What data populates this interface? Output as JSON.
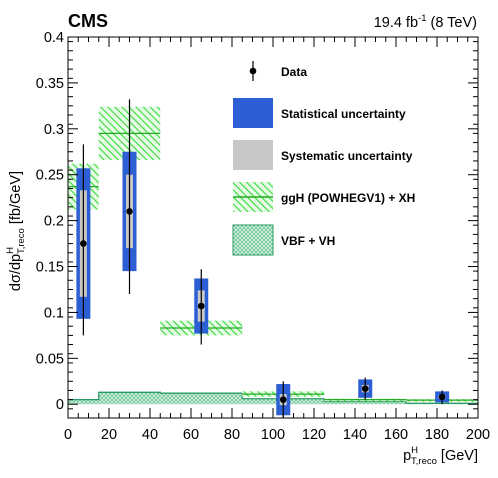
{
  "header": {
    "experiment": "CMS",
    "lumi": "19.4 fb",
    "lumi_exp": "-1",
    "energy": " (8 TeV)"
  },
  "colors": {
    "stat": "#2c5fd4",
    "syst": "#c8c8c8",
    "ggh": "#33dd33",
    "ggh_line": "#22aa22",
    "vbf": "#2a9a66",
    "vbf_fill": "#b9e8cf"
  },
  "chart_data": {
    "type": "bar",
    "xlabel": "p",
    "xlabel_sup": "H",
    "xlabel_sub": "T,reco",
    "xlabel_unit": " [GeV]",
    "ylabel": "dσ/dp",
    "ylabel_sup": "H",
    "ylabel_sub": "T,reco",
    "ylabel_unit": " [fb/GeV]",
    "xlim": [
      0,
      200
    ],
    "ylim": [
      -0.015,
      0.4
    ],
    "x_ticks": [
      0,
      20,
      40,
      60,
      80,
      100,
      120,
      140,
      160,
      180,
      200
    ],
    "x_tick_labels": [
      "0",
      "20",
      "40",
      "60",
      "80",
      "100",
      "120",
      "140",
      "160",
      "180",
      "200"
    ],
    "y_ticks": [
      0,
      0.05,
      0.1,
      0.15,
      0.2,
      0.25,
      0.3,
      0.35,
      0.4
    ],
    "y_tick_labels": [
      "0",
      "0.05",
      "0.1",
      "0.15",
      "0.2",
      "0.25",
      "0.3",
      "0.35",
      "0.4"
    ],
    "legend_position": "top-right",
    "legend": [
      {
        "key": "data",
        "label": "Data"
      },
      {
        "key": "stat",
        "label": "Statistical uncertainty"
      },
      {
        "key": "syst",
        "label": "Systematic uncertainty"
      },
      {
        "key": "ggh",
        "label": "ggH (POWHEGV1) + XH"
      },
      {
        "key": "vbf",
        "label": "VBF + VH"
      }
    ],
    "bins": [
      [
        0,
        15
      ],
      [
        15,
        45
      ],
      [
        45,
        85
      ],
      [
        85,
        125
      ],
      [
        125,
        165
      ],
      [
        165,
        200
      ]
    ],
    "series": [
      {
        "name": "Data",
        "x": [
          7.5,
          30,
          65,
          105,
          145,
          182.5
        ],
        "y": [
          0.175,
          0.21,
          0.107,
          0.005,
          0.017,
          0.008
        ],
        "total_err_low": [
          0.1,
          0.09,
          0.042,
          0.02,
          0.012,
          0.008
        ],
        "total_err_high": [
          0.108,
          0.122,
          0.04,
          0.02,
          0.012,
          0.007
        ],
        "stat_low": [
          0.082,
          0.065,
          0.03,
          0.017,
          0.01,
          0.006
        ],
        "stat_high": [
          0.082,
          0.065,
          0.03,
          0.017,
          0.01,
          0.006
        ],
        "syst_low": [
          0.058,
          0.04,
          0.017,
          0.006,
          0.004,
          0.002
        ],
        "syst_high": [
          0.058,
          0.04,
          0.017,
          0.006,
          0.004,
          0.002
        ]
      },
      {
        "name": "ggH (POWHEGV1) + XH",
        "values": [
          0.237,
          0.295,
          0.083,
          0.011,
          0.005,
          0.0045
        ],
        "band_low": [
          0.212,
          0.266,
          0.075,
          0.008,
          0.004,
          0.0035
        ],
        "band_high": [
          0.262,
          0.324,
          0.091,
          0.014,
          0.006,
          0.0055
        ]
      },
      {
        "name": "VBF + VH",
        "values": [
          0.005,
          0.013,
          0.012,
          0.006,
          0.003,
          0.001
        ]
      }
    ]
  }
}
